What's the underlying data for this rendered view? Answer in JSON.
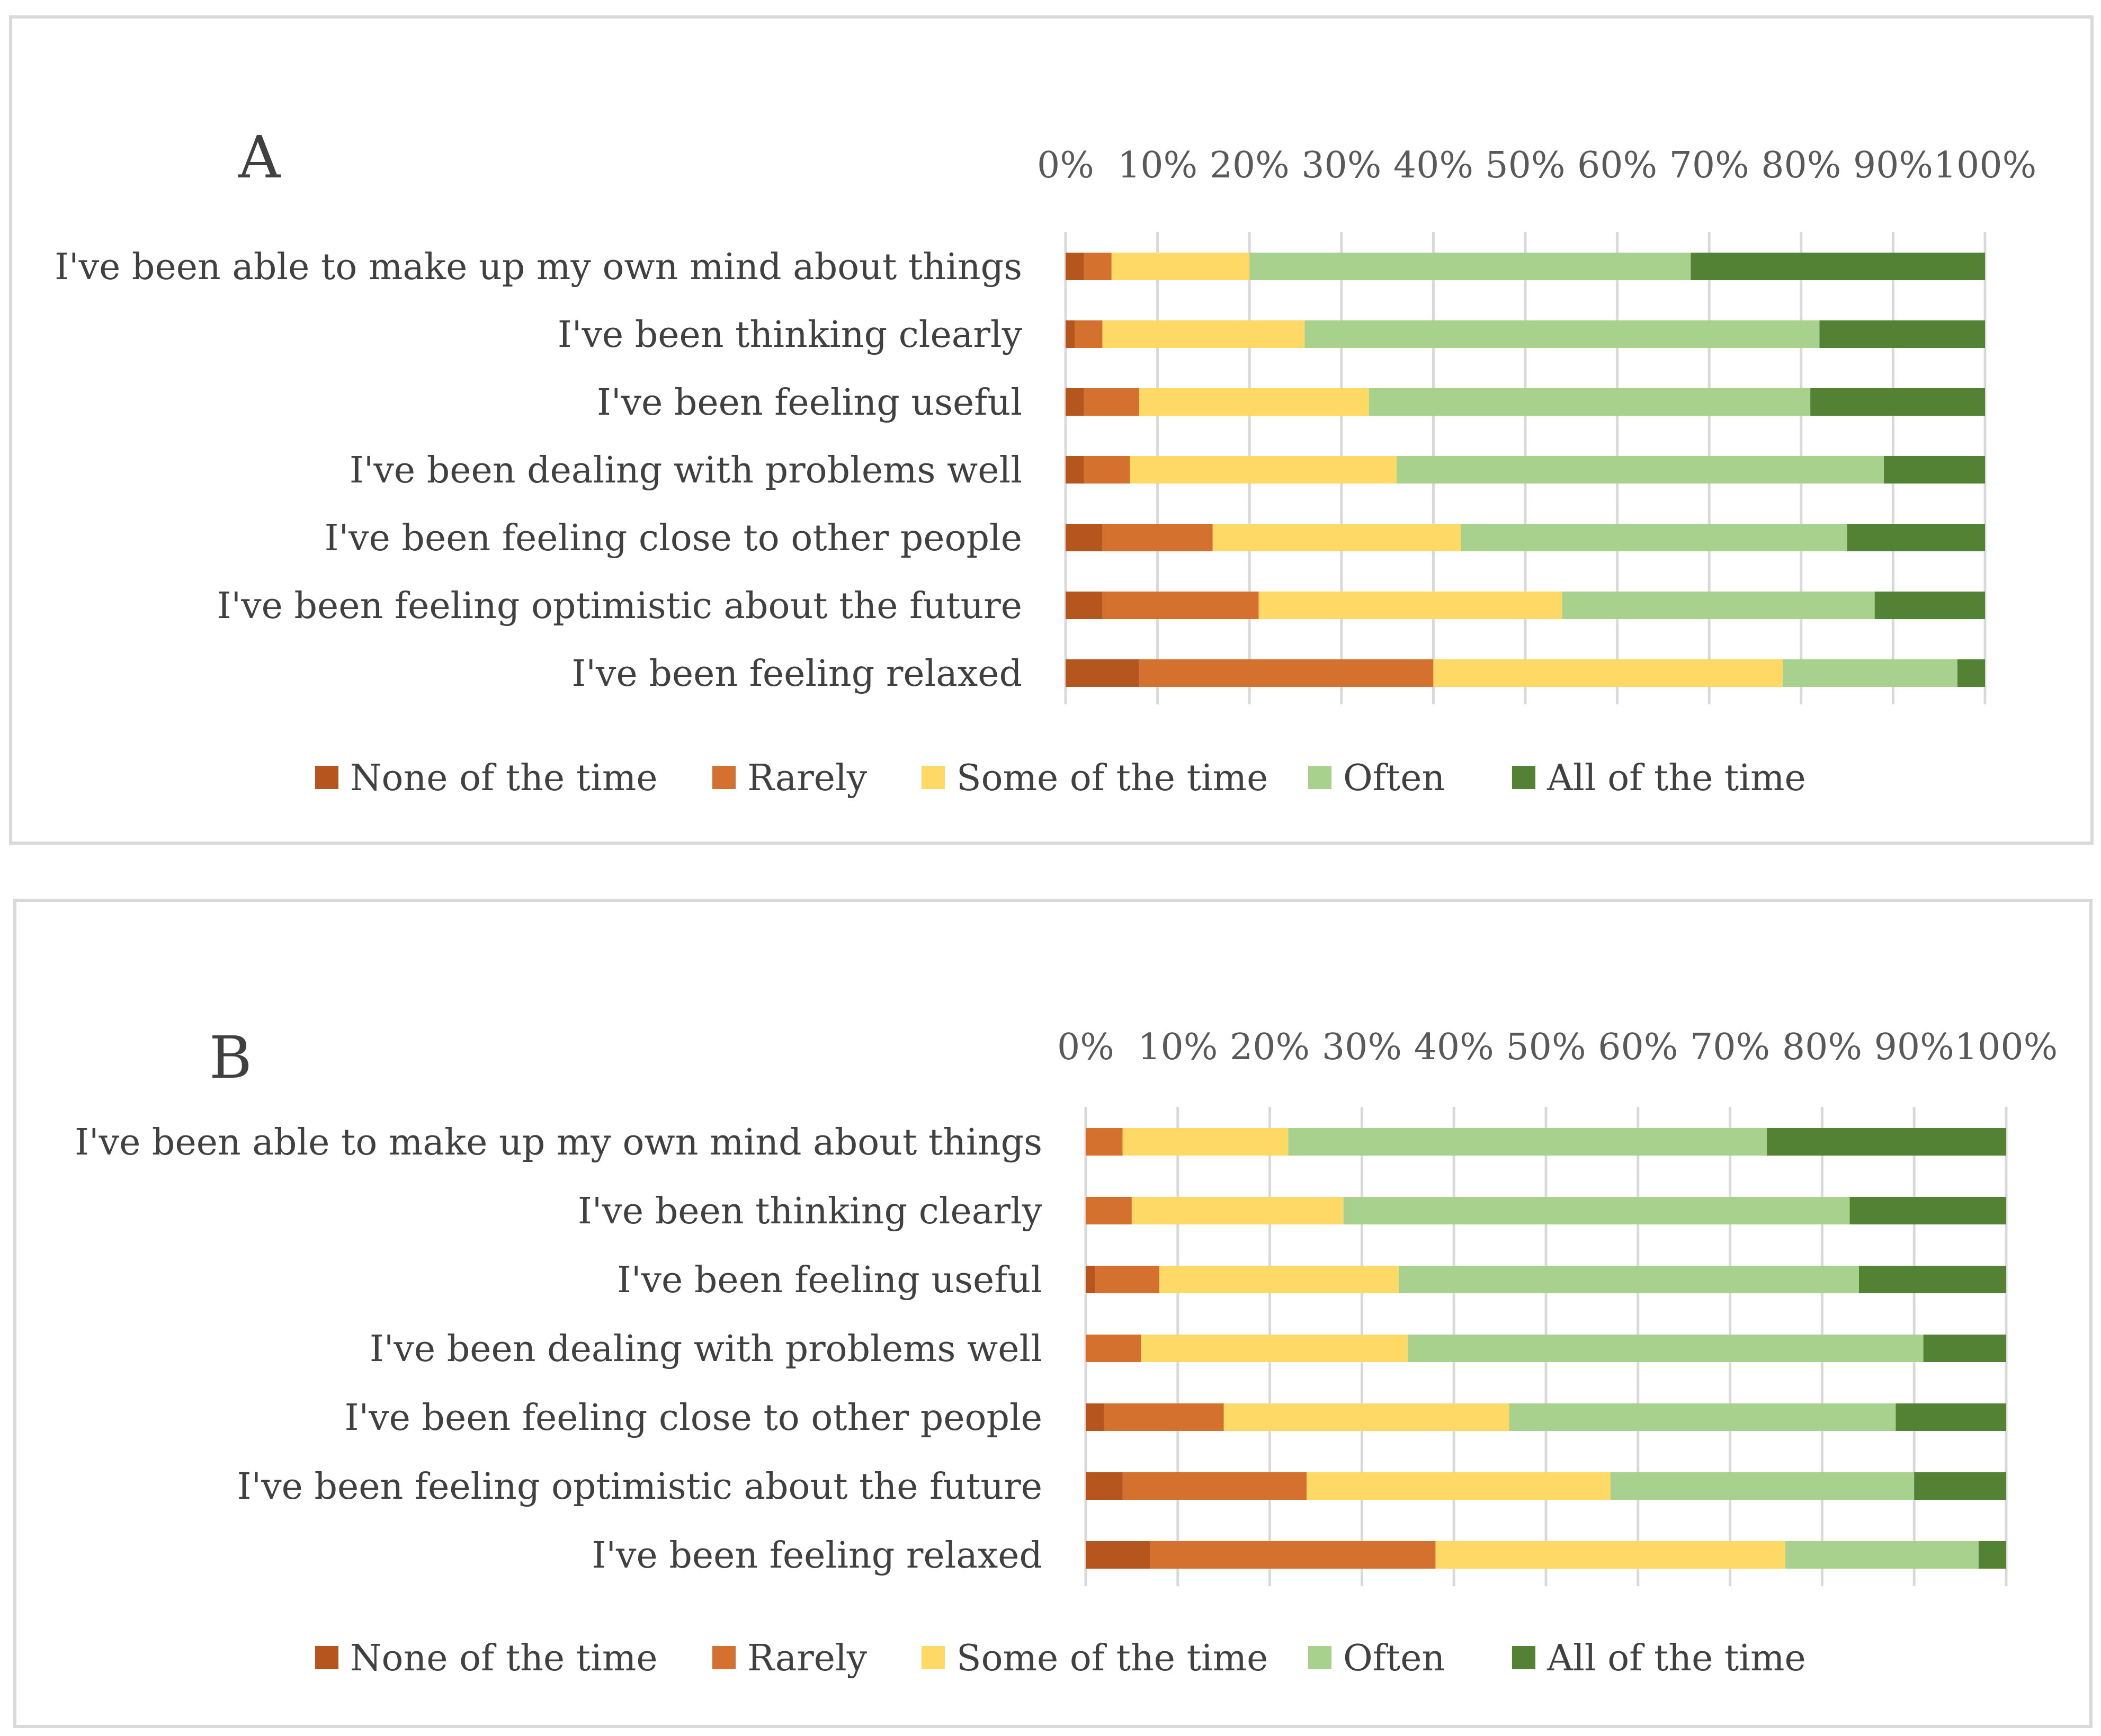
{
  "chart_data": [
    {
      "type": "bar",
      "orientation": "horizontal",
      "stacked": "percent",
      "title": "A",
      "xlabel": "",
      "ylabel": "",
      "xlim": [
        0,
        100
      ],
      "ticks": [
        "0%",
        "10%",
        "20%",
        "30%",
        "40%",
        "50%",
        "60%",
        "70%",
        "80%",
        "90%",
        "100%"
      ],
      "grid": true,
      "legend_position": "bottom",
      "categories": [
        "I've been able to make up my own mind about things",
        "I've been thinking clearly",
        "I've been feeling useful",
        "I've been dealing with problems well",
        "I've been feeling close to other people",
        "I've been feeling optimistic about the future",
        "I've been feeling relaxed"
      ],
      "series": [
        {
          "name": "None of the time",
          "color": "#b5561e",
          "values": [
            2.0,
            1.0,
            2.0,
            2.0,
            4.0,
            4.0,
            8.0
          ]
        },
        {
          "name": "Rarely",
          "color": "#d4712e",
          "values": [
            3.0,
            3.0,
            6.0,
            5.0,
            12.0,
            17.0,
            32.0
          ]
        },
        {
          "name": "Some of the time",
          "color": "#ffd966",
          "values": [
            15.0,
            22.0,
            25.0,
            29.0,
            27.0,
            33.0,
            38.0
          ]
        },
        {
          "name": "Often",
          "color": "#a9d18e",
          "values": [
            48.0,
            56.0,
            48.0,
            53.0,
            42.0,
            34.0,
            19.0
          ]
        },
        {
          "name": "All of the time",
          "color": "#548235",
          "values": [
            32.0,
            18.0,
            19.0,
            11.0,
            15.0,
            12.0,
            3.0
          ]
        }
      ]
    },
    {
      "type": "bar",
      "orientation": "horizontal",
      "stacked": "percent",
      "title": "B",
      "xlabel": "",
      "ylabel": "",
      "xlim": [
        0,
        100
      ],
      "ticks": [
        "0%",
        "10%",
        "20%",
        "30%",
        "40%",
        "50%",
        "60%",
        "70%",
        "80%",
        "90%",
        "100%"
      ],
      "grid": true,
      "legend_position": "bottom",
      "categories": [
        "I've been able to make up my own mind about things",
        "I've been thinking clearly",
        "I've been feeling useful",
        "I've been dealing with problems well",
        "I've been feeling close to other people",
        "I've been feeling optimistic about the future",
        "I've been feeling relaxed"
      ],
      "series": [
        {
          "name": "None of the time",
          "color": "#b5561e",
          "values": [
            0.0,
            0.0,
            1.0,
            0.0,
            2.0,
            4.0,
            7.0
          ]
        },
        {
          "name": "Rarely",
          "color": "#d4712e",
          "values": [
            4.0,
            5.0,
            7.0,
            6.0,
            13.0,
            20.0,
            31.0
          ]
        },
        {
          "name": "Some of the time",
          "color": "#ffd966",
          "values": [
            18.0,
            23.0,
            26.0,
            29.0,
            31.0,
            33.0,
            38.0
          ]
        },
        {
          "name": "Often",
          "color": "#a9d18e",
          "values": [
            52.0,
            55.0,
            50.0,
            56.0,
            42.0,
            33.0,
            21.0
          ]
        },
        {
          "name": "All of the time",
          "color": "#548235",
          "values": [
            26.0,
            17.0,
            16.0,
            9.0,
            12.0,
            10.0,
            3.0
          ]
        }
      ]
    }
  ]
}
